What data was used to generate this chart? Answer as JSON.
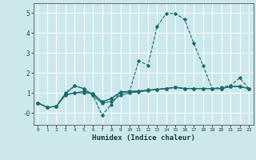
{
  "title": "",
  "xlabel": "Humidex (Indice chaleur)",
  "bg_color": "#cce8ec",
  "grid_color": "#ffffff",
  "line_color": "#1a6b6b",
  "xlim": [
    -0.5,
    23.5
  ],
  "ylim": [
    -0.6,
    5.5
  ],
  "xticks": [
    0,
    1,
    2,
    3,
    4,
    5,
    6,
    7,
    8,
    9,
    10,
    11,
    12,
    13,
    14,
    15,
    16,
    17,
    18,
    19,
    20,
    21,
    22,
    23
  ],
  "yticks": [
    0,
    1,
    2,
    3,
    4,
    5
  ],
  "ytick_labels": [
    "-0",
    "1",
    "2",
    "3",
    "4",
    "5"
  ],
  "lines": [
    {
      "x": [
        0,
        1,
        2,
        3,
        4,
        5,
        6,
        7,
        8,
        9,
        10,
        11,
        12,
        13,
        14,
        15,
        16,
        17,
        18,
        19,
        20,
        21,
        22,
        23
      ],
      "y": [
        0.5,
        0.28,
        0.32,
        1.0,
        1.35,
        1.22,
        0.88,
        -0.12,
        0.42,
        1.05,
        1.08,
        2.62,
        2.38,
        4.35,
        4.98,
        4.98,
        4.68,
        3.48,
        2.38,
        1.22,
        1.28,
        1.38,
        1.75,
        1.22
      ],
      "linestyle": "dashed"
    },
    {
      "x": [
        0,
        1,
        2,
        3,
        4,
        5,
        6,
        7,
        8,
        9,
        10,
        11,
        12,
        13,
        14,
        15,
        16,
        17,
        18,
        19,
        20,
        21,
        22,
        23
      ],
      "y": [
        0.5,
        0.28,
        0.32,
        0.95,
        1.35,
        1.22,
        0.88,
        0.48,
        0.58,
        0.88,
        1.0,
        1.05,
        1.12,
        1.18,
        1.22,
        1.28,
        1.22,
        1.22,
        1.22,
        1.22,
        1.22,
        1.32,
        1.32,
        1.22
      ],
      "linestyle": "solid"
    },
    {
      "x": [
        0,
        1,
        2,
        3,
        4,
        5,
        6,
        7,
        8,
        9,
        10,
        11,
        12,
        13,
        14,
        15,
        16,
        17,
        18,
        19,
        20,
        21,
        22,
        23
      ],
      "y": [
        0.5,
        0.28,
        0.32,
        0.92,
        1.0,
        1.08,
        0.98,
        0.55,
        0.72,
        1.0,
        1.05,
        1.08,
        1.12,
        1.18,
        1.22,
        1.28,
        1.22,
        1.22,
        1.22,
        1.22,
        1.22,
        1.32,
        1.32,
        1.22
      ],
      "linestyle": "solid"
    },
    {
      "x": [
        0,
        1,
        2,
        3,
        4,
        5,
        6,
        7,
        8,
        9,
        10,
        11,
        12,
        13,
        14,
        15,
        16,
        17,
        18,
        19,
        20,
        21,
        22,
        23
      ],
      "y": [
        0.5,
        0.28,
        0.32,
        0.88,
        1.0,
        1.0,
        0.98,
        0.55,
        0.72,
        1.05,
        1.08,
        1.1,
        1.15,
        1.18,
        1.22,
        1.28,
        1.22,
        1.22,
        1.22,
        1.22,
        1.22,
        1.32,
        1.32,
        1.22
      ],
      "linestyle": "solid"
    }
  ]
}
